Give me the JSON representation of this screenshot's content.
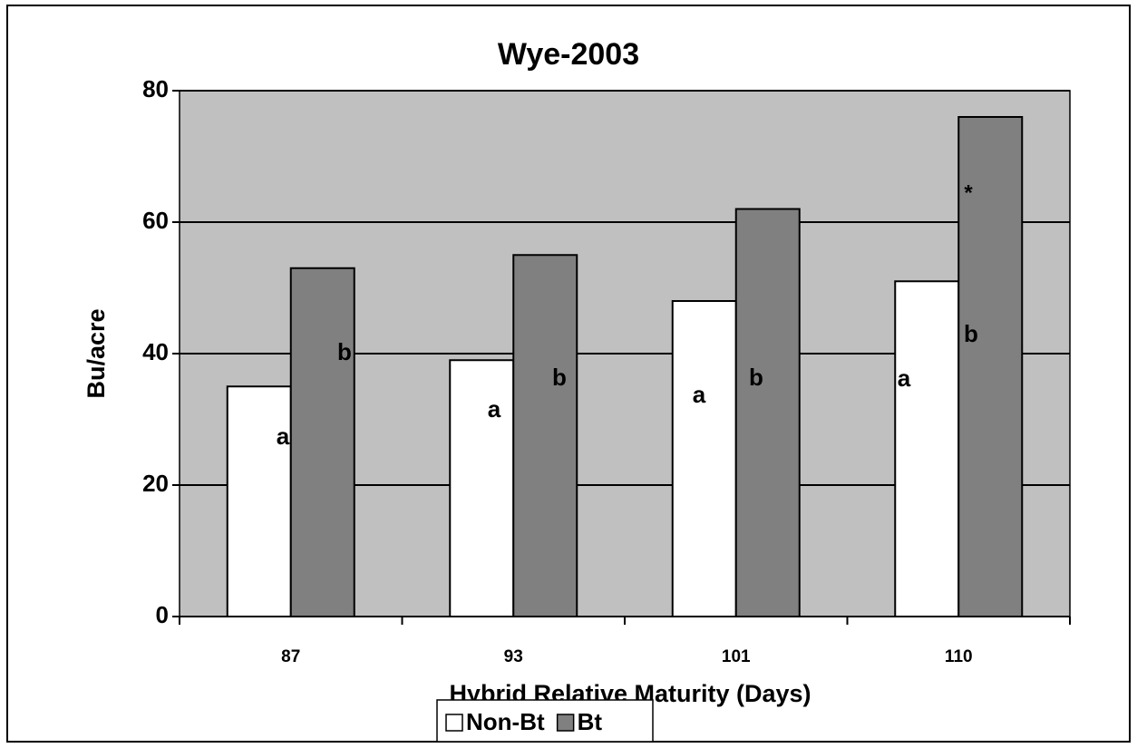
{
  "chart_data": {
    "type": "bar",
    "title": "Wye-2003",
    "xlabel": "Hybrid Relative Maturity (Days)",
    "ylabel": "Bu/acre",
    "categories": [
      "87",
      "93",
      "101",
      "110"
    ],
    "series": [
      {
        "name": "Non-Bt",
        "color": "#ffffff",
        "values": [
          35,
          39,
          48,
          51
        ],
        "labels": [
          "a",
          "a",
          "a",
          "a"
        ]
      },
      {
        "name": "Bt",
        "color": "#808080",
        "values": [
          53,
          55,
          62,
          76
        ],
        "labels": [
          "b",
          "b",
          "b",
          "b"
        ]
      }
    ],
    "annotation": "*",
    "ylim": [
      0,
      80
    ],
    "yticks": [
      0,
      20,
      40,
      60,
      80
    ],
    "grid": true,
    "background": "#c0c0c0",
    "legend": "bottom"
  }
}
